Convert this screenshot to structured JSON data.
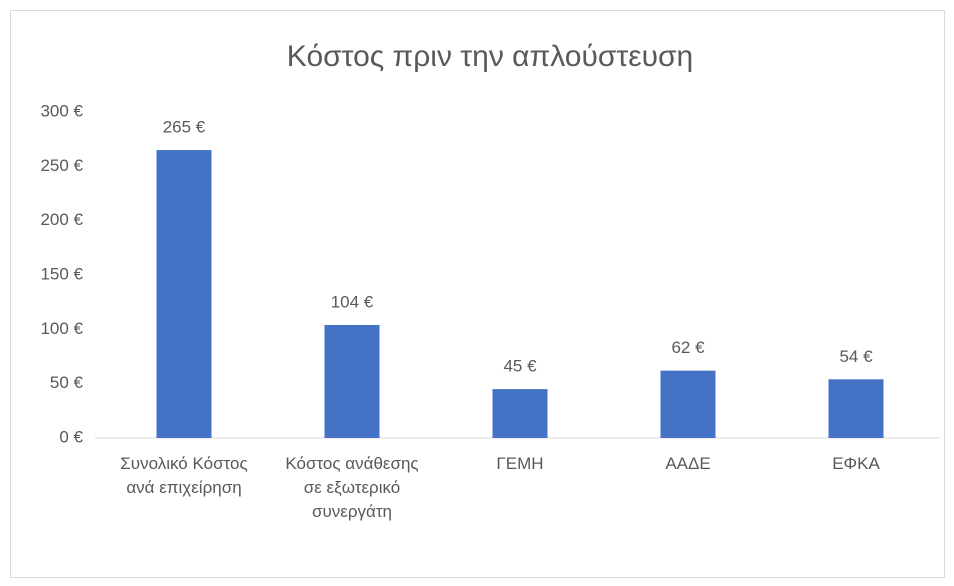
{
  "chart_data": {
    "type": "bar",
    "title": "Κόστος πριν την απλούστευση",
    "categories": [
      "Συνολικό Κόστος ανά επιχείρηση",
      "Κόστος ανάθεσης σε εξωτερικό συνεργάτη",
      "ΓΕΜΗ",
      "ΑΑΔΕ",
      "ΕΦΚΑ"
    ],
    "values": [
      265,
      104,
      45,
      62,
      54
    ],
    "value_labels": [
      "265 €",
      "104 €",
      "45 €",
      "62 €",
      "54 €"
    ],
    "color": "#4472c4",
    "ylim": [
      0,
      300
    ],
    "yticks": [
      {
        "value": 0,
        "label": "0 €"
      },
      {
        "value": 50,
        "label": "50 €"
      },
      {
        "value": 100,
        "label": "100 €"
      },
      {
        "value": 150,
        "label": "150 €"
      },
      {
        "value": 200,
        "label": "200 €"
      },
      {
        "value": 250,
        "label": "250 €"
      },
      {
        "value": 300,
        "label": "300 €"
      }
    ],
    "grid": false
  }
}
